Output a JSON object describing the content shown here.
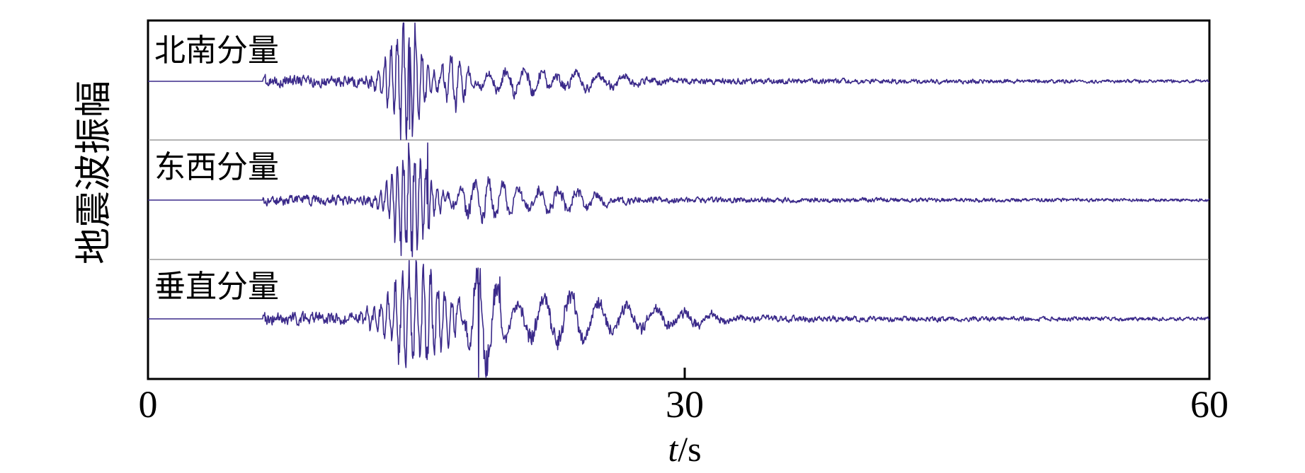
{
  "chart_data": {
    "type": "line",
    "ylabel": "地震波振幅",
    "xlabel_italic": "t",
    "xlabel_unit": "/s",
    "xlim": [
      0,
      60
    ],
    "xticks": [
      "0",
      "30",
      "60"
    ],
    "grid": false,
    "line_color": "#3b2a8a",
    "series": [
      {
        "name": "北南分量",
        "onset": 6.5,
        "noise": 0.14,
        "bursts": [
          {
            "center": 14.5,
            "width": 1.2,
            "amp": 0.85,
            "period": 0.35
          },
          {
            "center": 17.3,
            "width": 0.8,
            "amp": 0.45,
            "period": 0.5
          },
          {
            "center": 21.5,
            "width": 2.5,
            "amp": 0.2,
            "period": 1.0
          },
          {
            "center": 25.0,
            "width": 3.0,
            "amp": 0.12,
            "period": 1.4
          }
        ],
        "spikes": [
          {
            "x": 14.8,
            "y": -0.82
          },
          {
            "x": 15.1,
            "y": 1.0
          }
        ]
      },
      {
        "name": "东西分量",
        "onset": 6.5,
        "noise": 0.13,
        "bursts": [
          {
            "center": 14.8,
            "width": 1.3,
            "amp": 0.8,
            "period": 0.32
          },
          {
            "center": 19.0,
            "width": 1.6,
            "amp": 0.35,
            "period": 0.8
          },
          {
            "center": 23.0,
            "width": 3.0,
            "amp": 0.18,
            "period": 1.1
          }
        ],
        "spikes": [
          {
            "x": 14.3,
            "y": -0.95
          },
          {
            "x": 15.8,
            "y": 0.98
          }
        ]
      },
      {
        "name": "垂直分量",
        "onset": 6.5,
        "noise": 0.16,
        "bursts": [
          {
            "center": 15.2,
            "width": 2.0,
            "amp": 0.75,
            "period": 0.4
          },
          {
            "center": 19.0,
            "width": 1.0,
            "amp": 0.9,
            "period": 1.1
          },
          {
            "center": 23.0,
            "width": 2.6,
            "amp": 0.38,
            "period": 1.5
          },
          {
            "center": 28.0,
            "width": 4.0,
            "amp": 0.18,
            "period": 1.6
          }
        ],
        "spikes": [
          {
            "x": 18.7,
            "y": -1.0
          },
          {
            "x": 19.9,
            "y": 0.72
          }
        ]
      }
    ]
  }
}
